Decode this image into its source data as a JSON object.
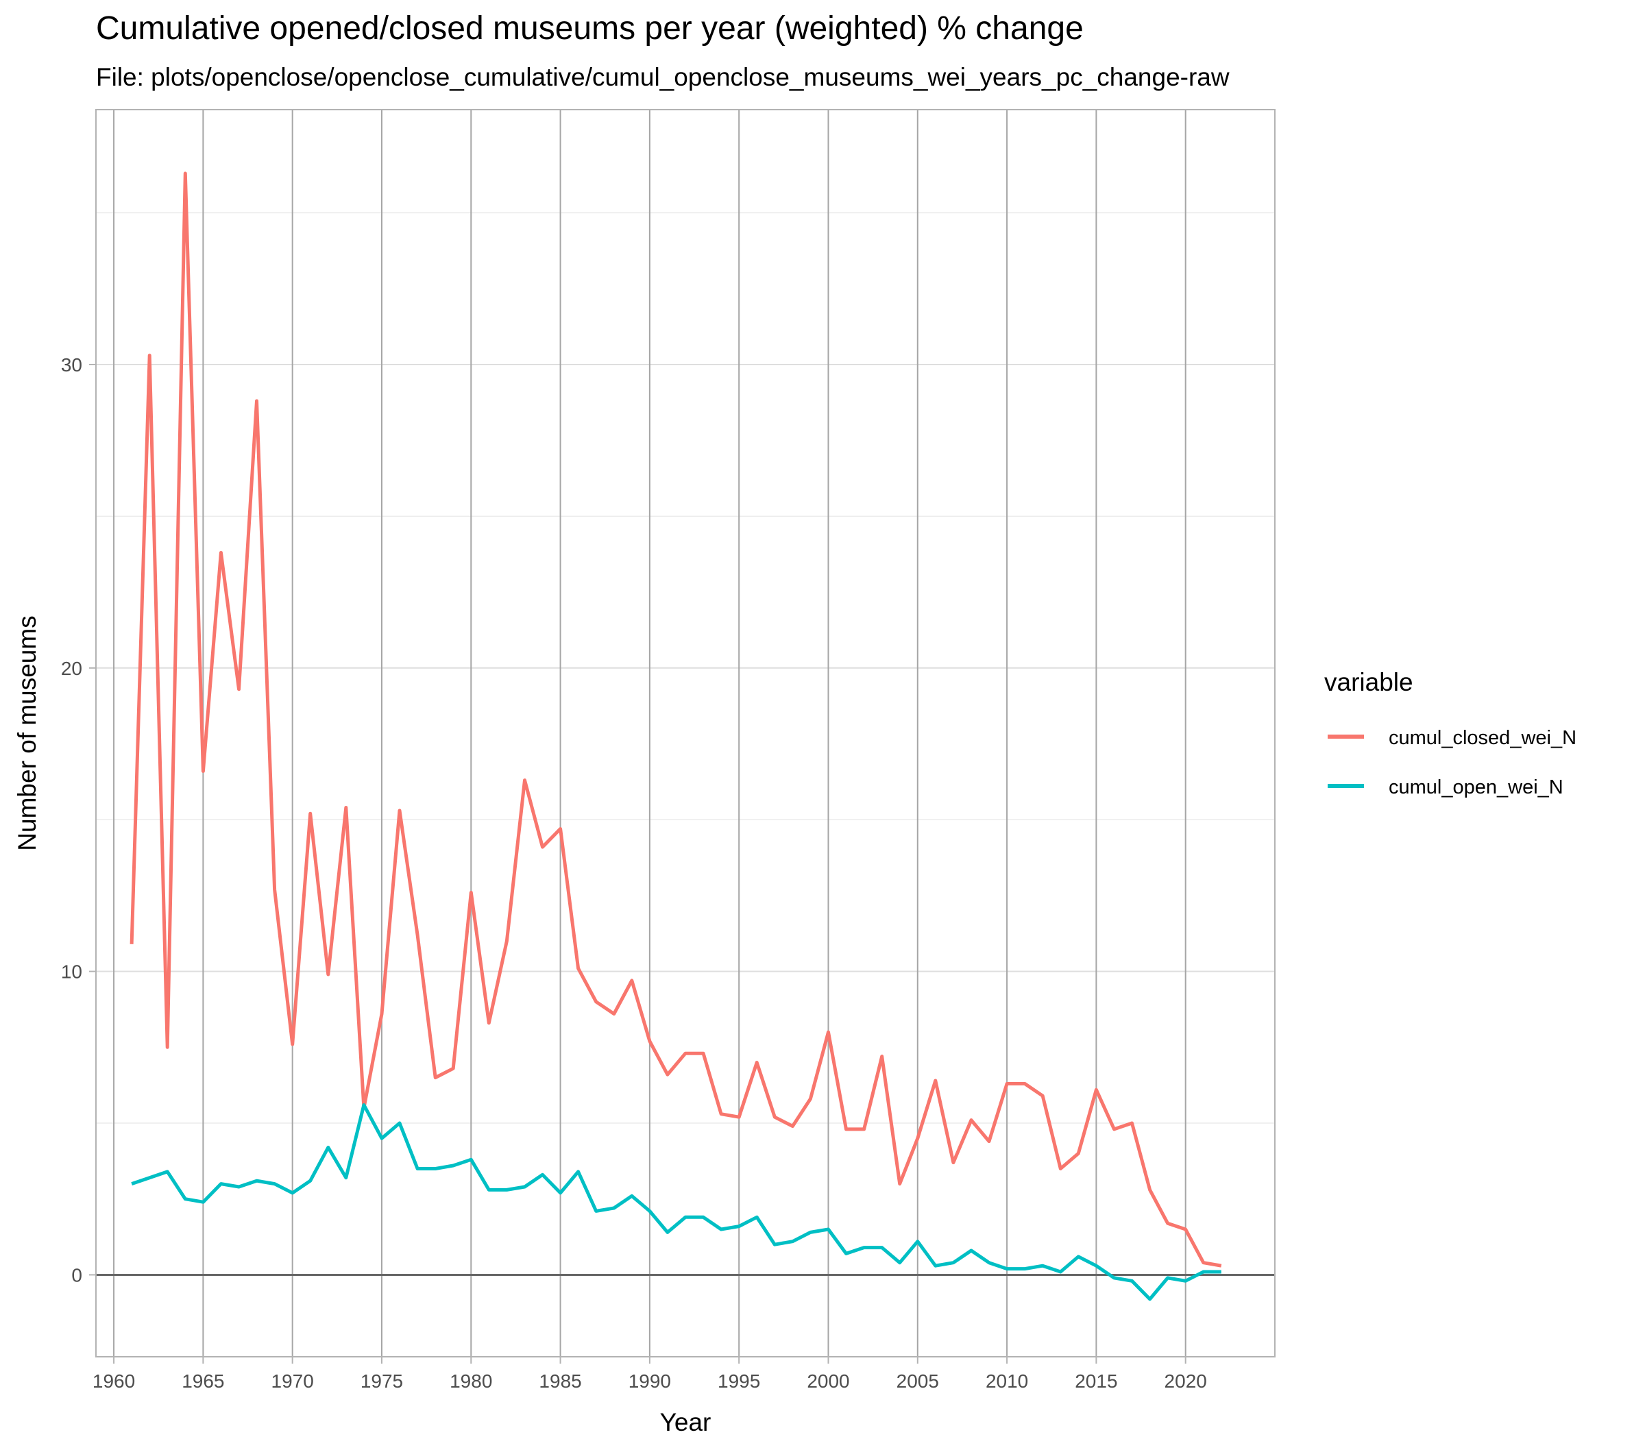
{
  "chart_data": {
    "type": "line",
    "title": "Cumulative opened/closed museums per year (weighted) % change",
    "subtitle": "File: plots/openclose/openclose_cumulative/cumul_openclose_museums_wei_years_pc_change-raw",
    "xlabel": "Year",
    "ylabel": "Number of museums",
    "xlim": [
      1959,
      2025
    ],
    "ylim": [
      -2.7,
      38.4
    ],
    "x_ticks": [
      1960,
      1965,
      1970,
      1975,
      1980,
      1985,
      1990,
      1995,
      2000,
      2005,
      2010,
      2015,
      2020
    ],
    "y_ticks": [
      0,
      10,
      20,
      30
    ],
    "grid": true,
    "legend": {
      "title": "variable",
      "position": "right"
    },
    "x": [
      1961,
      1962,
      1963,
      1964,
      1965,
      1966,
      1967,
      1968,
      1969,
      1970,
      1971,
      1972,
      1973,
      1974,
      1975,
      1976,
      1977,
      1978,
      1979,
      1980,
      1981,
      1982,
      1983,
      1984,
      1985,
      1986,
      1987,
      1988,
      1989,
      1990,
      1991,
      1992,
      1993,
      1994,
      1995,
      1996,
      1997,
      1998,
      1999,
      2000,
      2001,
      2002,
      2003,
      2004,
      2005,
      2006,
      2007,
      2008,
      2009,
      2010,
      2011,
      2012,
      2013,
      2014,
      2015,
      2016,
      2017,
      2018,
      2019,
      2020,
      2021,
      2022
    ],
    "series": [
      {
        "name": "cumul_closed_wei_N",
        "color": "#F8766D",
        "values": [
          10.9,
          30.3,
          7.5,
          36.3,
          16.6,
          23.8,
          19.3,
          28.8,
          12.7,
          7.6,
          15.2,
          9.9,
          15.4,
          5.5,
          8.6,
          15.3,
          11.2,
          6.5,
          6.8,
          12.6,
          8.3,
          11.0,
          16.3,
          14.1,
          14.7,
          10.1,
          9.0,
          8.6,
          9.7,
          7.7,
          6.6,
          7.3,
          7.3,
          5.3,
          5.2,
          7.0,
          5.2,
          4.9,
          5.8,
          8.0,
          4.8,
          4.8,
          7.2,
          3.0,
          4.5,
          6.4,
          3.7,
          5.1,
          4.4,
          6.3,
          6.3,
          5.9,
          3.5,
          4.0,
          6.1,
          4.8,
          5.0,
          2.8,
          1.7,
          1.5,
          0.4,
          0.3
        ]
      },
      {
        "name": "cumul_open_wei_N",
        "color": "#00BFC4",
        "values": [
          3.0,
          3.2,
          3.4,
          2.5,
          2.4,
          3.0,
          2.9,
          3.1,
          3.0,
          2.7,
          3.1,
          4.2,
          3.2,
          5.6,
          4.5,
          5.0,
          3.5,
          3.5,
          3.6,
          3.8,
          2.8,
          2.8,
          2.9,
          3.3,
          2.7,
          3.4,
          2.1,
          2.2,
          2.6,
          2.1,
          1.4,
          1.9,
          1.9,
          1.5,
          1.6,
          1.9,
          1.0,
          1.1,
          1.4,
          1.5,
          0.7,
          0.9,
          0.9,
          0.4,
          1.1,
          0.3,
          0.4,
          0.8,
          0.4,
          0.2,
          0.2,
          0.3,
          0.1,
          0.6,
          0.3,
          -0.1,
          -0.2,
          -0.8,
          -0.1,
          -0.2,
          0.1,
          0.1
        ]
      }
    ]
  }
}
